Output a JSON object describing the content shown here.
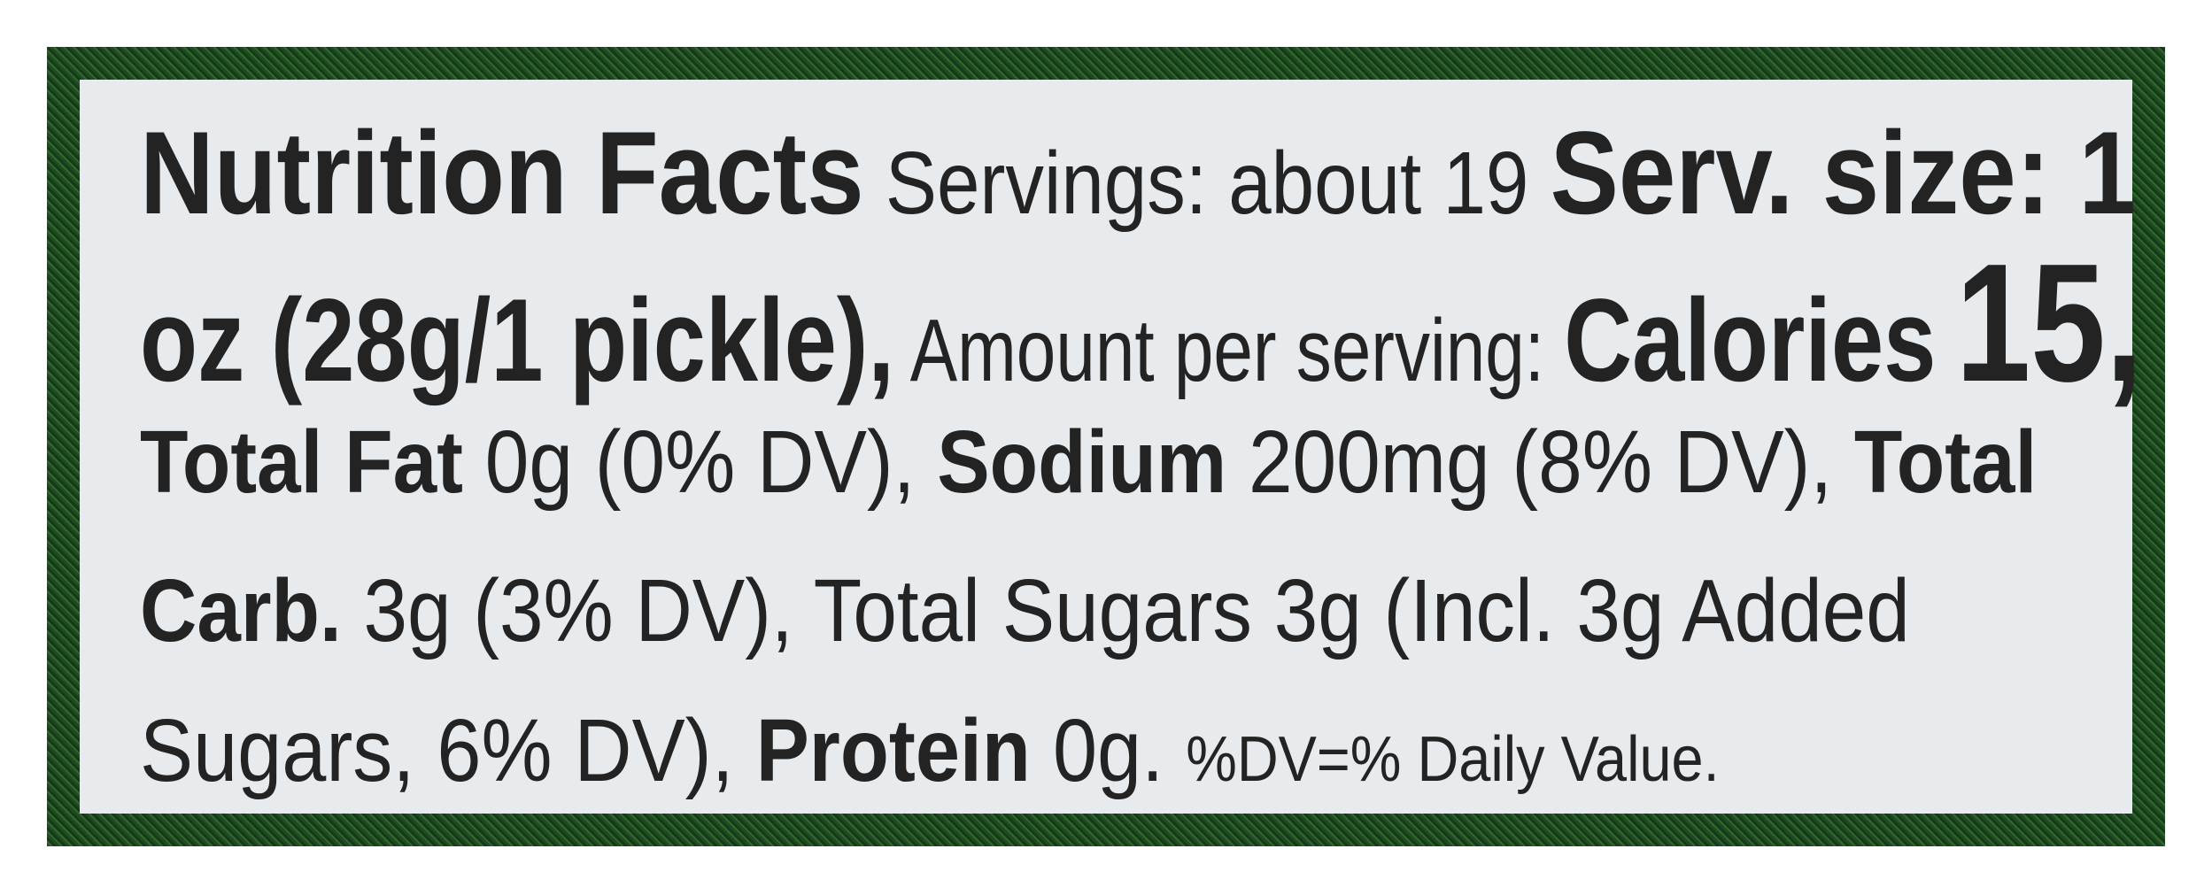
{
  "label": {
    "title": "Nutrition Facts",
    "servings": "Servings: about 19",
    "serving_size_label": "Serv. size: 1",
    "serving_size_value": "oz (28g/1 pickle),",
    "amount_per_serving": "Amount per serving:",
    "calories_label": "Calories",
    "calories_value": "15,",
    "total_fat_label": "Total Fat",
    "total_fat_value": "0g (0% DV),",
    "sodium_label": "Sodium",
    "sodium_value": "200mg (8% DV),",
    "total_carb_label_1": "Total",
    "total_carb_label_2": "Carb.",
    "total_carb_value": "3g (3% DV), Total Sugars 3g (Incl. 3g Added",
    "added_sugars_value": "Sugars, 6% DV),",
    "protein_label": "Protein",
    "protein_value": "0g.",
    "footnote": "%DV=% Daily Value."
  },
  "colors": {
    "border": "#2a5e2a",
    "background": "#e7ebee",
    "text": "#232323"
  }
}
